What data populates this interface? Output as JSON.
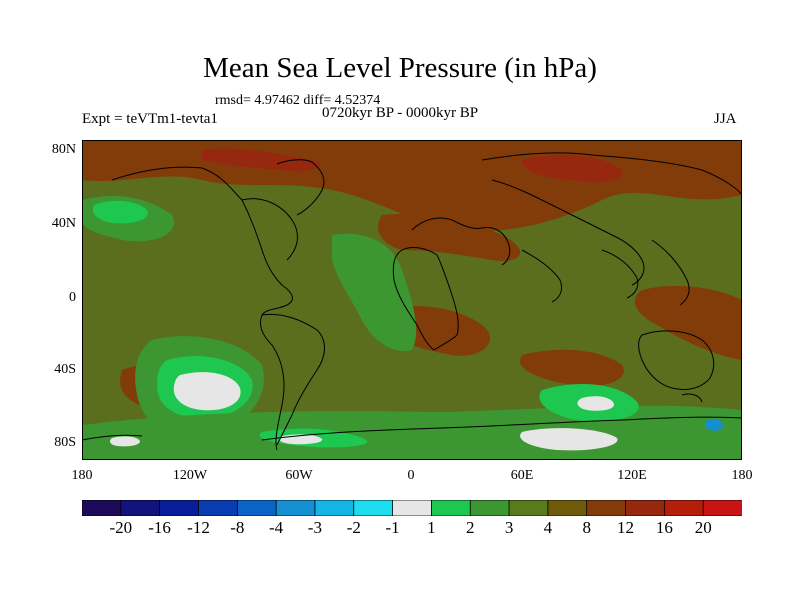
{
  "header": {
    "title": "Mean Sea Level Pressure (in hPa)",
    "stats": "rmsd= 4.97462  diff= 4.52374",
    "experiment": "Expt = teVTm1-tevta1",
    "period": "0720kyr BP - 0000kyr BP",
    "season": "JJA"
  },
  "axes": {
    "y_ticks": [
      "80N",
      "40N",
      "0",
      "40S",
      "80S"
    ],
    "x_ticks": [
      "180",
      "120W",
      "60W",
      "0",
      "60E",
      "120E",
      "180"
    ]
  },
  "colorbar": {
    "labels": [
      "-20",
      "-16",
      "-12",
      "-8",
      "-4",
      "-3",
      "-2",
      "-1",
      "1",
      "2",
      "3",
      "4",
      "8",
      "12",
      "16",
      "20"
    ],
    "colors": [
      "#1e0a5a",
      "#13137e",
      "#0a1e9c",
      "#0a3cb4",
      "#0a64c8",
      "#1490d2",
      "#14b4e6",
      "#1edcf0",
      "#e6e6e6",
      "#1ec850",
      "#3c9632",
      "#5a7a1e",
      "#6e5a0a",
      "#823c0a",
      "#962810",
      "#b41e0a",
      "#c81414"
    ]
  },
  "map_colors": {
    "base": "#5a6e1e",
    "high": "#823c0a",
    "higher": "#962810",
    "low": "#3c9632",
    "lower": "#1ec850",
    "lowest": "#e6e6e6",
    "neg": "#1490d2",
    "coast": "#000000"
  }
}
